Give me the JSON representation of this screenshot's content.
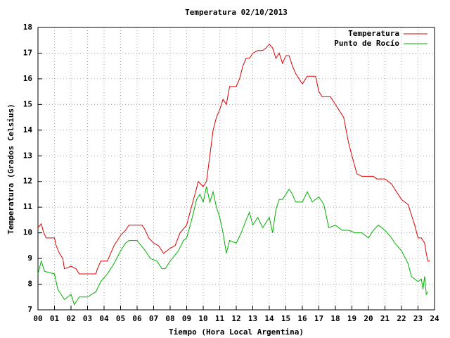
{
  "chart_data": {
    "type": "line",
    "title": "Temperatura 02/10/2013",
    "xlabel": "Tiempo (Hora Local Argentina)",
    "ylabel": "Temperatura (Grados Celsius)",
    "xlim": [
      0,
      24
    ],
    "ylim": [
      7,
      18
    ],
    "xticks": [
      {
        "value": 0,
        "label": "00"
      },
      {
        "value": 1,
        "label": "01"
      },
      {
        "value": 2,
        "label": "02"
      },
      {
        "value": 3,
        "label": "03"
      },
      {
        "value": 4,
        "label": "04"
      },
      {
        "value": 5,
        "label": "05"
      },
      {
        "value": 6,
        "label": "06"
      },
      {
        "value": 7,
        "label": "07"
      },
      {
        "value": 8,
        "label": "08"
      },
      {
        "value": 9,
        "label": "09"
      },
      10,
      11,
      12,
      13,
      14,
      15,
      16,
      17,
      18,
      19,
      20,
      21,
      22,
      23,
      24
    ],
    "yticks": [
      7,
      8,
      9,
      10,
      11,
      12,
      13,
      14,
      15,
      16,
      17,
      18
    ],
    "grid": true,
    "legend": "top-right",
    "series": [
      {
        "name": "Temperatura",
        "color": "#e00000",
        "x": [
          0.0,
          0.2,
          0.35,
          0.5,
          1.0,
          1.1,
          1.3,
          1.5,
          1.6,
          2.0,
          2.3,
          2.5,
          3.0,
          3.5,
          3.6,
          3.8,
          4.2,
          4.4,
          4.6,
          5.0,
          5.3,
          5.5,
          6.0,
          6.3,
          6.5,
          6.7,
          7.0,
          7.3,
          7.6,
          8.0,
          8.3,
          8.6,
          9.0,
          9.2,
          9.5,
          9.7,
          10.0,
          10.2,
          10.4,
          10.6,
          10.8,
          11.0,
          11.2,
          11.4,
          11.6,
          12.0,
          12.2,
          12.4,
          12.6,
          12.8,
          13.0,
          13.3,
          13.6,
          13.8,
          14.0,
          14.2,
          14.4,
          14.6,
          14.8,
          15.0,
          15.2,
          15.4,
          15.6,
          16.0,
          16.3,
          16.8,
          17.0,
          17.2,
          17.7,
          18.0,
          18.3,
          18.5,
          18.8,
          19.0,
          19.3,
          19.6,
          20.3,
          20.5,
          21.0,
          21.4,
          21.6,
          22.0,
          22.4,
          22.6,
          22.8,
          23.0,
          23.2,
          23.4,
          23.5,
          23.6,
          23.7
        ],
        "values": [
          10.2,
          10.35,
          10.0,
          9.8,
          9.8,
          9.5,
          9.2,
          9.0,
          8.6,
          8.7,
          8.6,
          8.4,
          8.4,
          8.4,
          8.6,
          8.9,
          8.9,
          9.2,
          9.5,
          9.9,
          10.1,
          10.3,
          10.3,
          10.3,
          10.1,
          9.8,
          9.6,
          9.5,
          9.2,
          9.4,
          9.5,
          10.0,
          10.3,
          10.8,
          11.5,
          12.0,
          11.8,
          12.0,
          13.0,
          14.0,
          14.5,
          14.8,
          15.2,
          15.0,
          15.7,
          15.7,
          16.0,
          16.5,
          16.8,
          16.8,
          17.0,
          17.1,
          17.1,
          17.2,
          17.35,
          17.2,
          16.8,
          17.0,
          16.6,
          16.9,
          16.9,
          16.5,
          16.2,
          15.8,
          16.1,
          16.1,
          15.5,
          15.3,
          15.3,
          15.0,
          14.7,
          14.5,
          13.5,
          13.0,
          12.3,
          12.2,
          12.2,
          12.1,
          12.1,
          11.9,
          11.7,
          11.3,
          11.1,
          10.7,
          10.3,
          9.8,
          9.8,
          9.6,
          9.2,
          8.9,
          8.9
        ]
      },
      {
        "name": "Punto de Rocío",
        "color": "#00b000",
        "x": [
          0.0,
          0.2,
          0.4,
          1.0,
          1.2,
          1.5,
          1.6,
          1.8,
          2.0,
          2.2,
          2.5,
          3.0,
          3.5,
          3.8,
          4.2,
          4.6,
          5.0,
          5.3,
          5.5,
          6.0,
          6.5,
          6.8,
          7.2,
          7.5,
          7.7,
          8.0,
          8.5,
          8.8,
          9.0,
          9.3,
          9.6,
          9.8,
          10.0,
          10.2,
          10.4,
          10.6,
          10.8,
          11.0,
          11.2,
          11.4,
          11.6,
          12.0,
          12.3,
          12.6,
          12.8,
          13.0,
          13.3,
          13.6,
          14.0,
          14.2,
          14.4,
          14.6,
          14.8,
          15.0,
          15.2,
          15.4,
          15.6,
          16.0,
          16.3,
          16.6,
          17.0,
          17.3,
          17.6,
          18.0,
          18.4,
          18.8,
          19.2,
          19.6,
          20.0,
          20.3,
          20.6,
          21.0,
          21.4,
          21.6,
          22.0,
          22.4,
          22.6,
          23.0,
          23.2,
          23.3,
          23.4,
          23.5,
          23.6
        ],
        "values": [
          8.4,
          8.9,
          8.5,
          8.4,
          7.8,
          7.5,
          7.4,
          7.5,
          7.6,
          7.2,
          7.5,
          7.5,
          7.7,
          8.1,
          8.4,
          8.8,
          9.3,
          9.6,
          9.7,
          9.7,
          9.3,
          9.0,
          8.9,
          8.6,
          8.6,
          8.9,
          9.3,
          9.7,
          9.8,
          10.5,
          11.3,
          11.5,
          11.2,
          11.8,
          11.2,
          11.6,
          11.0,
          10.6,
          10.0,
          9.2,
          9.7,
          9.6,
          10.0,
          10.5,
          10.8,
          10.3,
          10.6,
          10.2,
          10.6,
          10.0,
          10.9,
          11.3,
          11.3,
          11.5,
          11.7,
          11.5,
          11.2,
          11.2,
          11.6,
          11.2,
          11.4,
          11.1,
          10.2,
          10.3,
          10.1,
          10.1,
          10.0,
          10.0,
          9.8,
          10.1,
          10.3,
          10.1,
          9.8,
          9.6,
          9.3,
          8.8,
          8.3,
          8.1,
          8.2,
          7.8,
          8.3,
          7.6,
          7.7
        ]
      }
    ]
  }
}
